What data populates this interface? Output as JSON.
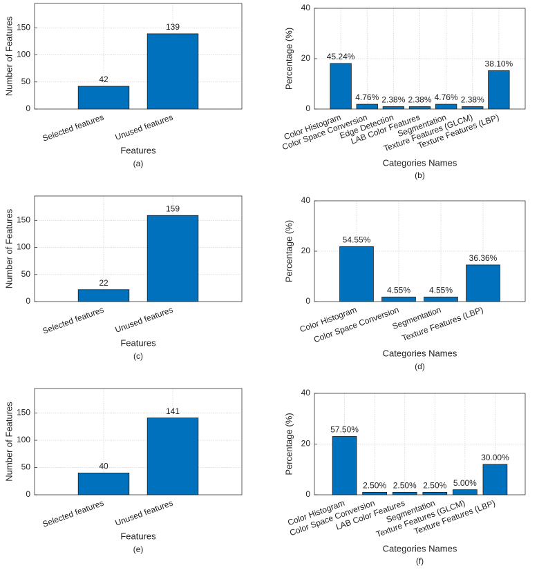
{
  "chart_data": [
    {
      "type": "bar",
      "caption": "(a)",
      "xlabel": "Features",
      "ylabel": "Number of Features",
      "categories": [
        "Selected features",
        "Unused features"
      ],
      "values": [
        42,
        139
      ],
      "data_labels": true,
      "color": "#0072bd",
      "ylim": [
        0,
        195
      ],
      "yticks": [
        0,
        50,
        100,
        150
      ],
      "grid": true
    },
    {
      "type": "bar",
      "caption": "(b)",
      "xlabel": "Categories Names",
      "ylabel": "Percentage (%)",
      "categories": [
        "Color Histogram",
        "Color Space Conversion",
        "Edge Detection",
        "LAB Color Features",
        "Segmentation",
        "Texture Features (GLCM)",
        "Texture Features (LBP)"
      ],
      "values": [
        18.1,
        1.9,
        0.95,
        0.95,
        1.9,
        0.95,
        15.24
      ],
      "annotations": [
        "45.24%",
        "4.76%",
        "2.38%",
        "2.38%",
        "4.76%",
        "2.38%",
        "38.10%"
      ],
      "color": "#0072bd",
      "ylim": [
        0,
        40
      ],
      "yticks": [
        0,
        20,
        40
      ],
      "grid": true
    },
    {
      "type": "bar",
      "caption": "(c)",
      "xlabel": "Features",
      "ylabel": "Number of Features",
      "categories": [
        "Selected features",
        "Unused features"
      ],
      "values": [
        22,
        159
      ],
      "data_labels": true,
      "color": "#0072bd",
      "ylim": [
        0,
        195
      ],
      "yticks": [
        0,
        50,
        100,
        150
      ],
      "grid": true
    },
    {
      "type": "bar",
      "caption": "(d)",
      "xlabel": "Categories Names",
      "ylabel": "Percentage (%)",
      "categories": [
        "Color Histogram",
        "Color Space Conversion",
        "Segmentation",
        "Texture Features (LBP)"
      ],
      "values": [
        21.82,
        1.82,
        1.82,
        14.54
      ],
      "annotations": [
        "54.55%",
        "4.55%",
        "4.55%",
        "36.36%"
      ],
      "color": "#0072bd",
      "ylim": [
        0,
        40
      ],
      "yticks": [
        0,
        20,
        40
      ],
      "grid": true
    },
    {
      "type": "bar",
      "caption": "(e)",
      "xlabel": "Features",
      "ylabel": "Number of Features",
      "categories": [
        "Selected features",
        "Unused features"
      ],
      "values": [
        40,
        141
      ],
      "data_labels": true,
      "color": "#0072bd",
      "ylim": [
        0,
        195
      ],
      "yticks": [
        0,
        50,
        100,
        150
      ],
      "grid": true
    },
    {
      "type": "bar",
      "caption": "(f)",
      "xlabel": "Categories Names",
      "ylabel": "Percentage (%)",
      "categories": [
        "Color Histogram",
        "Color Space Conversion",
        "LAB Color Features",
        "Segmentation",
        "Texture Features (GLCM)",
        "Texture Features (LBP)"
      ],
      "values": [
        23,
        1,
        1,
        1,
        2,
        12
      ],
      "annotations": [
        "57.50%",
        "2.50%",
        "2.50%",
        "2.50%",
        "5.00%",
        "30.00%"
      ],
      "color": "#0072bd",
      "ylim": [
        0,
        40
      ],
      "yticks": [
        0,
        20,
        40
      ],
      "grid": true
    }
  ]
}
